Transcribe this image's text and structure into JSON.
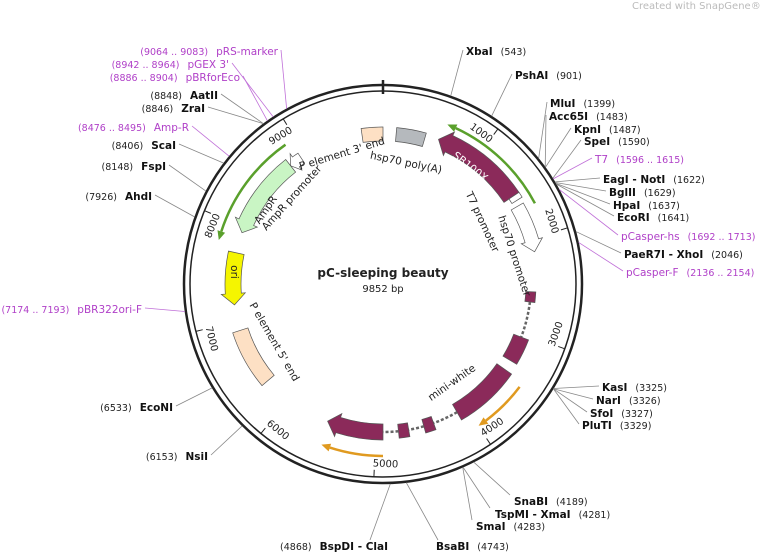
{
  "watermark": "Created with SnapGene®",
  "map": {
    "name": "pC-sleeping beauty",
    "length": "9852 bp"
  },
  "labels": [
    {
      "name": "XbaI",
      "location": "(543)"
    },
    {
      "name": "PshAI",
      "location": "(901)"
    },
    {
      "name": "MluI",
      "location": "(1399)"
    },
    {
      "name": "Acc65I",
      "location": "(1483)"
    },
    {
      "name": "KpnI",
      "location": "(1487)"
    },
    {
      "name": "SpeI",
      "location": "(1590)"
    },
    {
      "name": "T7",
      "location": "(1596 .. 1615)"
    },
    {
      "name": "EagI - NotI",
      "location": "(1622)"
    },
    {
      "name": "BglII",
      "location": "(1629)"
    },
    {
      "name": "HpaI",
      "location": "(1637)"
    },
    {
      "name": "EcoRI",
      "location": "(1641)"
    },
    {
      "name": "pCasper-hs",
      "location": "(1692 .. 1713)"
    },
    {
      "name": "PaeR7I - XhoI",
      "location": "(2046)"
    },
    {
      "name": "pCasper-F",
      "location": "(2136 .. 2154)"
    },
    {
      "name": "KasI",
      "location": "(3325)"
    },
    {
      "name": "NarI",
      "location": "(3326)"
    },
    {
      "name": "SfoI",
      "location": "(3327)"
    },
    {
      "name": "PluTI",
      "location": "(3329)"
    },
    {
      "name": "SnaBI",
      "location": "(4189)"
    },
    {
      "name": "TspMI - XmaI",
      "location": "(4281)"
    },
    {
      "name": "SmaI",
      "location": "(4283)"
    },
    {
      "name": "BsaBI",
      "location": "(4743)"
    },
    {
      "name": "BspDI - ClaI",
      "location": "(4868)"
    },
    {
      "name": "NsiI",
      "location": "(6153)"
    },
    {
      "name": "EcoNI",
      "location": "(6533)"
    },
    {
      "name": "pBR322ori-F",
      "location": "(7174 .. 7193)"
    },
    {
      "name": "AhdI",
      "location": "(7926)"
    },
    {
      "name": "FspI",
      "location": "(8148)"
    },
    {
      "name": "ScaI",
      "location": "(8406)"
    },
    {
      "name": "Amp-R",
      "location": "(8476 .. 8495)"
    },
    {
      "name": "ZraI",
      "location": "(8846)"
    },
    {
      "name": "AatII",
      "location": "(8848)"
    },
    {
      "name": "pBRforEco",
      "location": "(8886 .. 8904)"
    },
    {
      "name": "pGEX 3'",
      "location": "(8942 .. 8964)"
    },
    {
      "name": "pRS-marker",
      "location": "(9064 .. 9083)"
    }
  ],
  "scale": [
    "1000",
    "2000",
    "3000",
    "4000",
    "5000",
    "6000",
    "7000",
    "8000",
    "9000"
  ],
  "features": [
    "SB100X",
    "hsp70 poly(A)",
    "P element 3' end",
    "hsp70 promoter",
    "T7 promoter",
    "AmpR",
    "AmpR promoter",
    "ori",
    "P element 5' end",
    "mini-white"
  ]
}
